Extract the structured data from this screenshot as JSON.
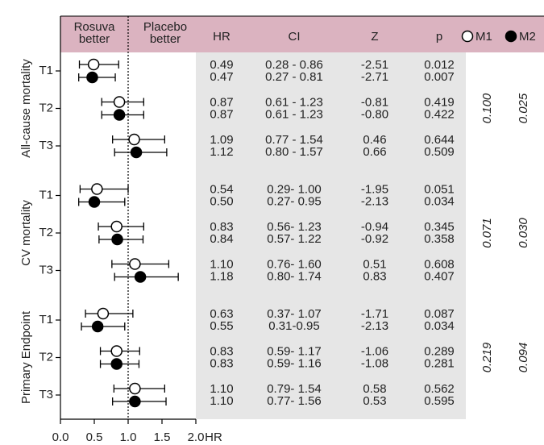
{
  "chart_data": {
    "type": "forest",
    "left_label": [
      "Rosuva",
      "better"
    ],
    "right_label": [
      "Placebo",
      "better"
    ],
    "columns": [
      "HR",
      "CI",
      "Z",
      "p"
    ],
    "series": [
      {
        "name": "M1",
        "color": "#ffffff"
      },
      {
        "name": "M2",
        "color": "#000000"
      }
    ],
    "x_label": "HR",
    "xlim": [
      0,
      2
    ],
    "xticks": [
      {
        "value": 0,
        "label": "0.0"
      },
      0.5,
      {
        "value": 1,
        "label": "1.0"
      },
      1.5,
      {
        "value": 2,
        "label": "2.0"
      }
    ],
    "reference_line": 1,
    "groups": [
      {
        "name": "All-cause mortality",
        "pooled_p": [
          "0.100",
          "0.025"
        ],
        "trials": [
          {
            "name": "T1",
            "models": [
              {
                "hr": 0.49,
                "hr_label": "0.49",
                "ci_low": 0.28,
                "ci_high": 0.86,
                "ci": "0.28 - 0.86",
                "z": "-2.51",
                "p": "0.012"
              },
              {
                "hr": 0.47,
                "hr_label": "0.47",
                "ci_low": 0.27,
                "ci_high": 0.81,
                "ci": "0.27 - 0.81",
                "z": "-2.71",
                "p": "0.007"
              }
            ]
          },
          {
            "name": "T2",
            "models": [
              {
                "hr": 0.87,
                "hr_label": "0.87",
                "ci_low": 0.61,
                "ci_high": 1.23,
                "ci": "0.61 - 1.23",
                "z": "-0.81",
                "p": "0.419"
              },
              {
                "hr": 0.87,
                "hr_label": "0.87",
                "ci_low": 0.61,
                "ci_high": 1.23,
                "ci": "0.61 - 1.23",
                "z": "-0.80",
                "p": "0.422"
              }
            ]
          },
          {
            "name": "T3",
            "models": [
              {
                "hr": 1.09,
                "hr_label": "1.09",
                "ci_low": 0.77,
                "ci_high": 1.54,
                "ci": "0.77 - 1.54",
                "z": "0.46",
                "p": "0.644"
              },
              {
                "hr": 1.12,
                "hr_label": "1.12",
                "ci_low": 0.8,
                "ci_high": 1.57,
                "ci": "0.80 - 1.57",
                "z": "0.66",
                "p": "0.509"
              }
            ]
          }
        ]
      },
      {
        "name": "CV mortality",
        "pooled_p": [
          "0.071",
          "0.030"
        ],
        "trials": [
          {
            "name": "T1",
            "models": [
              {
                "hr": 0.54,
                "hr_label": "0.54",
                "ci_low": 0.29,
                "ci_high": 1.0,
                "ci": "0.29- 1.00",
                "z": "-1.95",
                "p": "0.051"
              },
              {
                "hr": 0.5,
                "hr_label": "0.50",
                "ci_low": 0.27,
                "ci_high": 0.95,
                "ci": "0.27- 0.95",
                "z": "-2.13",
                "p": "0.034"
              }
            ]
          },
          {
            "name": "T2",
            "models": [
              {
                "hr": 0.83,
                "hr_label": "0.83",
                "ci_low": 0.56,
                "ci_high": 1.23,
                "ci": "0.56- 1.23",
                "z": "-0.94",
                "p": "0.345"
              },
              {
                "hr": 0.84,
                "hr_label": "0.84",
                "ci_low": 0.57,
                "ci_high": 1.22,
                "ci": "0.57- 1.22",
                "z": "-0.92",
                "p": "0.358"
              }
            ]
          },
          {
            "name": "T3",
            "models": [
              {
                "hr": 1.1,
                "hr_label": "1.10",
                "ci_low": 0.76,
                "ci_high": 1.6,
                "ci": "0.76- 1.60",
                "z": "0.51",
                "p": "0.608"
              },
              {
                "hr": 1.18,
                "hr_label": "1.18",
                "ci_low": 0.8,
                "ci_high": 1.74,
                "ci": "0.80- 1.74",
                "z": "0.83",
                "p": "0.407"
              }
            ]
          }
        ]
      },
      {
        "name": "Primary Endpoint",
        "pooled_p": [
          "0.219",
          "0.094"
        ],
        "trials": [
          {
            "name": "T1",
            "models": [
              {
                "hr": 0.63,
                "hr_label": "0.63",
                "ci_low": 0.37,
                "ci_high": 1.07,
                "ci": "0.37- 1.07",
                "z": "-1.71",
                "p": "0.087"
              },
              {
                "hr": 0.55,
                "hr_label": "0.55",
                "ci_low": 0.31,
                "ci_high": 0.95,
                "ci": "0.31-0.95",
                "z": "-2.13",
                "p": "0.034"
              }
            ]
          },
          {
            "name": "T2",
            "models": [
              {
                "hr": 0.83,
                "hr_label": "0.83",
                "ci_low": 0.59,
                "ci_high": 1.17,
                "ci": "0.59- 1.17",
                "z": "-1.06",
                "p": "0.289"
              },
              {
                "hr": 0.83,
                "hr_label": "0.83",
                "ci_low": 0.59,
                "ci_high": 1.16,
                "ci": "0.59- 1.16",
                "z": "-1.08",
                "p": "0.281"
              }
            ]
          },
          {
            "name": "T3",
            "models": [
              {
                "hr": 1.1,
                "hr_label": "1.10",
                "ci_low": 0.79,
                "ci_high": 1.54,
                "ci": "0.79- 1.54",
                "z": "0.58",
                "p": "0.562"
              },
              {
                "hr": 1.1,
                "hr_label": "1.10",
                "ci_low": 0.77,
                "ci_high": 1.56,
                "ci": "0.77- 1.56",
                "z": "0.53",
                "p": "0.595"
              }
            ]
          }
        ]
      }
    ]
  }
}
